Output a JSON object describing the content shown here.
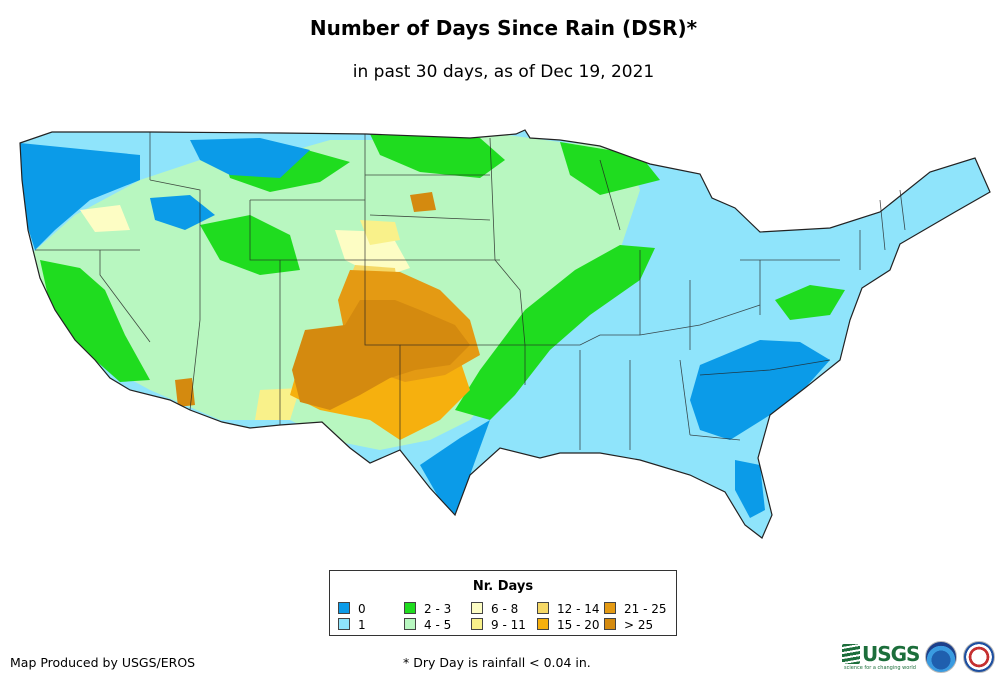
{
  "title": "Number of Days Since Rain (DSR)*",
  "subtitle": "in past 30 days, as of Dec 19, 2021",
  "map": {
    "region": "Contiguous United States",
    "class_colors": {
      "0": "#0b9be8",
      "1": "#8fe4fb",
      "2-3": "#1fdc1f",
      "4-5": "#b8f7c0",
      "6-8": "#fdfdc4",
      "9-11": "#f9f18a",
      "12-14": "#f5d866",
      "15-20": "#f6b00e",
      "21-25": "#e49a13",
      ">25": "#d48a0f"
    }
  },
  "legend": {
    "title": "Nr. Days",
    "items": [
      {
        "label": "0",
        "color": "#0b9be8"
      },
      {
        "label": "1",
        "color": "#8fe4fb"
      },
      {
        "label": "2 - 3",
        "color": "#1fdc1f"
      },
      {
        "label": "4 - 5",
        "color": "#b8f7c0"
      },
      {
        "label": "6 - 8",
        "color": "#fdfdc4"
      },
      {
        "label": "9 - 11",
        "color": "#f9f18a"
      },
      {
        "label": "12 - 14",
        "color": "#f5d866"
      },
      {
        "label": "15 - 20",
        "color": "#f6b00e"
      },
      {
        "label": "21 - 25",
        "color": "#e49a13"
      },
      {
        "label": "> 25",
        "color": "#d48a0f"
      }
    ]
  },
  "footer": {
    "credit": "Map Produced by USGS/EROS",
    "footnote": "* Dry Day is rainfall < 0.04 in.",
    "logos": [
      {
        "name": "usgs-logo",
        "text": "USGS",
        "tagline": "science for a changing world"
      },
      {
        "name": "noaa-logo"
      },
      {
        "name": "nws-logo"
      }
    ]
  }
}
